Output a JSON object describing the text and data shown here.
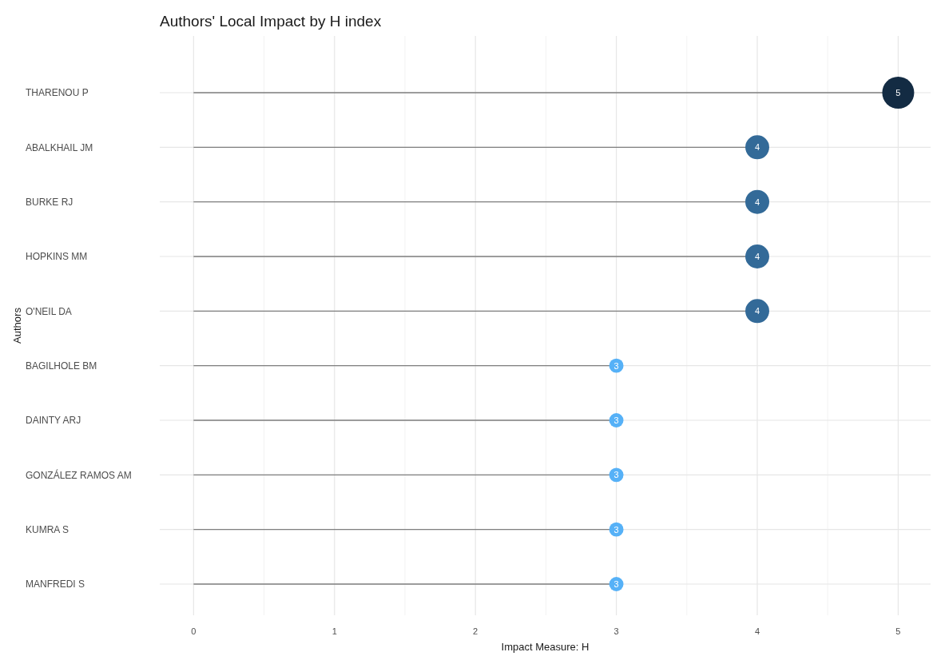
{
  "chart_data": {
    "type": "lollipop",
    "orientation": "horizontal",
    "title": "Authors' Local Impact by H index",
    "xlabel": "Impact Measure: H",
    "ylabel": "Authors",
    "categories": [
      "THARENOU P",
      "ABALKHAIL JM",
      "BURKE RJ",
      "HOPKINS MM",
      "O'NEIL DA",
      "BAGILHOLE BM",
      "DAINTY ARJ",
      "GONZÁLEZ RAMOS AM",
      "KUMRA S",
      "MANFREDI S"
    ],
    "values": [
      5,
      4,
      4,
      4,
      4,
      3,
      3,
      3,
      3,
      3
    ],
    "sizes": [
      1,
      0.56,
      0.56,
      0.56,
      0.56,
      0.2,
      0.2,
      0.2,
      0.2,
      0.2
    ],
    "colors": [
      "#132b43",
      "#336a98",
      "#336a98",
      "#336a98",
      "#336a98",
      "#56b1f7",
      "#56b1f7",
      "#56b1f7",
      "#56b1f7",
      "#56b1f7"
    ],
    "xlim": [
      -0.24,
      5.23
    ],
    "xticks": [
      0,
      1,
      2,
      3,
      4,
      5
    ],
    "grid": true,
    "data_labels": true
  }
}
